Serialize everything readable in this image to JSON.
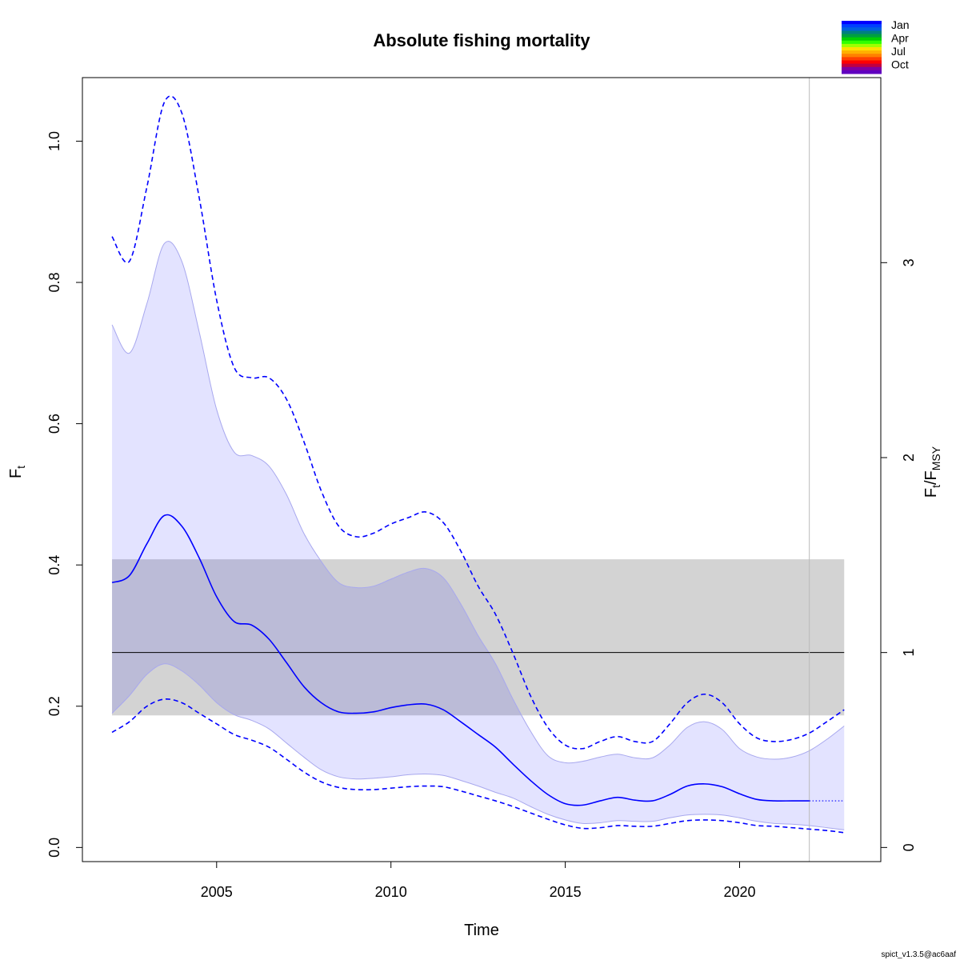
{
  "chart_data": {
    "type": "line",
    "title": "Absolute fishing mortality",
    "xlabel": "Time",
    "ylabel_main": "F",
    "ylabel_sub": "t",
    "ylabel_right_main": "F",
    "ylabel_right_sub1": "t",
    "ylabel_right_sep": "/F",
    "ylabel_right_sub2": "MSY",
    "xlim": [
      2001.15,
      2024.05
    ],
    "ylim": [
      -0.02,
      1.09
    ],
    "x_ticks": [
      2005,
      2010,
      2015,
      2020
    ],
    "y_ticks": [
      0.0,
      0.2,
      0.4,
      0.6,
      0.8,
      1.0
    ],
    "y_tick_labels": [
      "0.0",
      "0.2",
      "0.4",
      "0.6",
      "0.8",
      "1.0"
    ],
    "right_ticks": [
      0,
      1,
      2,
      3
    ],
    "fmsy": 0.276,
    "fmsy_ci": [
      0.187,
      0.408
    ],
    "fmsy_ci_x": [
      2002.0,
      2023.0
    ],
    "projection_start": 2022.0,
    "x": [
      2002.0,
      2002.5,
      2003.0,
      2003.5,
      2004.0,
      2004.5,
      2005.0,
      2005.5,
      2006.0,
      2006.5,
      2007.0,
      2007.5,
      2008.0,
      2008.5,
      2009.0,
      2009.5,
      2010.0,
      2010.5,
      2011.0,
      2011.5,
      2012.0,
      2012.5,
      2013.0,
      2013.5,
      2014.0,
      2014.5,
      2015.0,
      2015.5,
      2016.0,
      2016.5,
      2017.0,
      2017.5,
      2018.0,
      2018.5,
      2019.0,
      2019.5,
      2020.0,
      2020.5,
      2021.0,
      2021.5,
      2022.0,
      2022.5,
      2023.0
    ],
    "series": [
      {
        "name": "F_est",
        "values": [
          0.375,
          0.385,
          0.43,
          0.47,
          0.455,
          0.41,
          0.355,
          0.32,
          0.315,
          0.295,
          0.262,
          0.228,
          0.205,
          0.192,
          0.19,
          0.192,
          0.198,
          0.202,
          0.203,
          0.195,
          0.178,
          0.16,
          0.142,
          0.118,
          0.095,
          0.075,
          0.062,
          0.06,
          0.066,
          0.071,
          0.067,
          0.066,
          0.075,
          0.087,
          0.09,
          0.086,
          0.076,
          0.068,
          0.066,
          0.066,
          0.066,
          0.066,
          0.066
        ]
      },
      {
        "name": "F_ci_upper",
        "values": [
          0.865,
          0.83,
          0.935,
          1.055,
          1.04,
          0.92,
          0.775,
          0.68,
          0.665,
          0.665,
          0.635,
          0.575,
          0.505,
          0.455,
          0.44,
          0.445,
          0.458,
          0.467,
          0.475,
          0.46,
          0.42,
          0.37,
          0.33,
          0.275,
          0.215,
          0.17,
          0.145,
          0.14,
          0.15,
          0.157,
          0.15,
          0.15,
          0.175,
          0.205,
          0.217,
          0.205,
          0.175,
          0.155,
          0.15,
          0.153,
          0.162,
          0.178,
          0.195
        ]
      },
      {
        "name": "F_ci_lower",
        "values": [
          0.163,
          0.178,
          0.2,
          0.21,
          0.205,
          0.19,
          0.175,
          0.16,
          0.152,
          0.142,
          0.125,
          0.107,
          0.093,
          0.085,
          0.082,
          0.082,
          0.084,
          0.086,
          0.087,
          0.086,
          0.08,
          0.073,
          0.066,
          0.058,
          0.049,
          0.04,
          0.032,
          0.027,
          0.028,
          0.031,
          0.03,
          0.03,
          0.034,
          0.038,
          0.039,
          0.038,
          0.035,
          0.031,
          0.03,
          0.028,
          0.026,
          0.024,
          0.021
        ]
      },
      {
        "name": "F_band_upper",
        "values": [
          0.74,
          0.7,
          0.77,
          0.855,
          0.83,
          0.73,
          0.62,
          0.56,
          0.555,
          0.54,
          0.5,
          0.445,
          0.405,
          0.375,
          0.368,
          0.37,
          0.38,
          0.39,
          0.395,
          0.382,
          0.345,
          0.3,
          0.26,
          0.21,
          0.165,
          0.13,
          0.12,
          0.122,
          0.128,
          0.132,
          0.127,
          0.127,
          0.145,
          0.17,
          0.178,
          0.167,
          0.14,
          0.128,
          0.125,
          0.128,
          0.137,
          0.153,
          0.172
        ]
      },
      {
        "name": "F_band_lower",
        "values": [
          0.19,
          0.215,
          0.245,
          0.26,
          0.25,
          0.23,
          0.205,
          0.188,
          0.18,
          0.168,
          0.148,
          0.128,
          0.11,
          0.1,
          0.097,
          0.098,
          0.1,
          0.103,
          0.104,
          0.102,
          0.095,
          0.087,
          0.078,
          0.07,
          0.058,
          0.047,
          0.039,
          0.034,
          0.035,
          0.038,
          0.037,
          0.037,
          0.042,
          0.046,
          0.047,
          0.046,
          0.042,
          0.037,
          0.034,
          0.033,
          0.031,
          0.028,
          0.025
        ]
      }
    ],
    "legend": {
      "position": "top-right",
      "labels": [
        "Jan",
        "Apr",
        "Jul",
        "Oct"
      ],
      "colors": [
        "#0000FF",
        "#0040FF",
        "#0060E0",
        "#008080",
        "#00A040",
        "#00D000",
        "#30FF00",
        "#A0FF00",
        "#FFE000",
        "#FFB000",
        "#FF8000",
        "#FF4000",
        "#FF0000",
        "#C00040",
        "#8000A0",
        "#6000C0"
      ]
    },
    "colors": {
      "estimate": "#0000FF",
      "band_fill": "#E3E3FC",
      "band_edge": "#A8A8EE",
      "fmsy_band": "#D3D3D3",
      "fmsy_line": "#000000",
      "projection_line": "#BBBBBB"
    }
  },
  "footer": "spict_v1.3.5@ac6aaf"
}
